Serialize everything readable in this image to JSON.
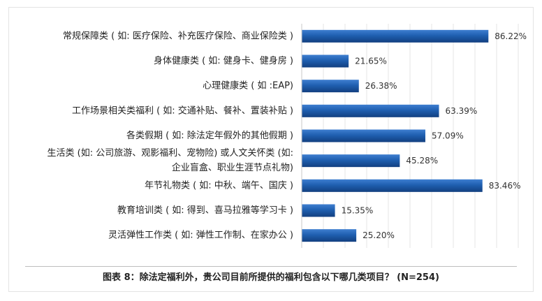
{
  "chart_data": {
    "type": "bar",
    "orientation": "horizontal",
    "categories": [
      "常规保障类 ( 如: 医疗保险、补充医疗保险、商业保险类 )",
      "身体健康类 ( 如: 健身卡、健身房 )",
      "心理健康类 ( 如 :EAP)",
      "工作场景相关类福利 ( 如: 交通补贴、餐补、置装补贴 )",
      "各类假期 ( 如: 除法定年假外的其他假期 )",
      "生活类 (如: 公司旅游、观影福利、宠物险) 或人文关怀类 (如:\n企业盲盒、职业生涯节点礼物)",
      "年节礼物类 ( 如: 中秋、端午、国庆 )",
      "教育培训类 ( 如: 得到、喜马拉雅等学习卡 )",
      "灵活弹性工作类 ( 如: 弹性工作制、在家办公 )"
    ],
    "values": [
      86.22,
      21.65,
      26.38,
      63.39,
      57.09,
      45.28,
      83.46,
      15.35,
      25.2
    ],
    "data_labels": [
      "86.22%",
      "21.65%",
      "26.38%",
      "63.39%",
      "57.09%",
      "45.28%",
      "83.46%",
      "15.35%",
      "25.20%"
    ],
    "xlim": [
      0,
      100
    ],
    "grid": true,
    "legend": "none",
    "bar_color": "#1f5fb0",
    "caption": "图表 8：除法定福利外，贵公司目前所提供的福利包含以下哪几类项目？ (N=254)"
  }
}
